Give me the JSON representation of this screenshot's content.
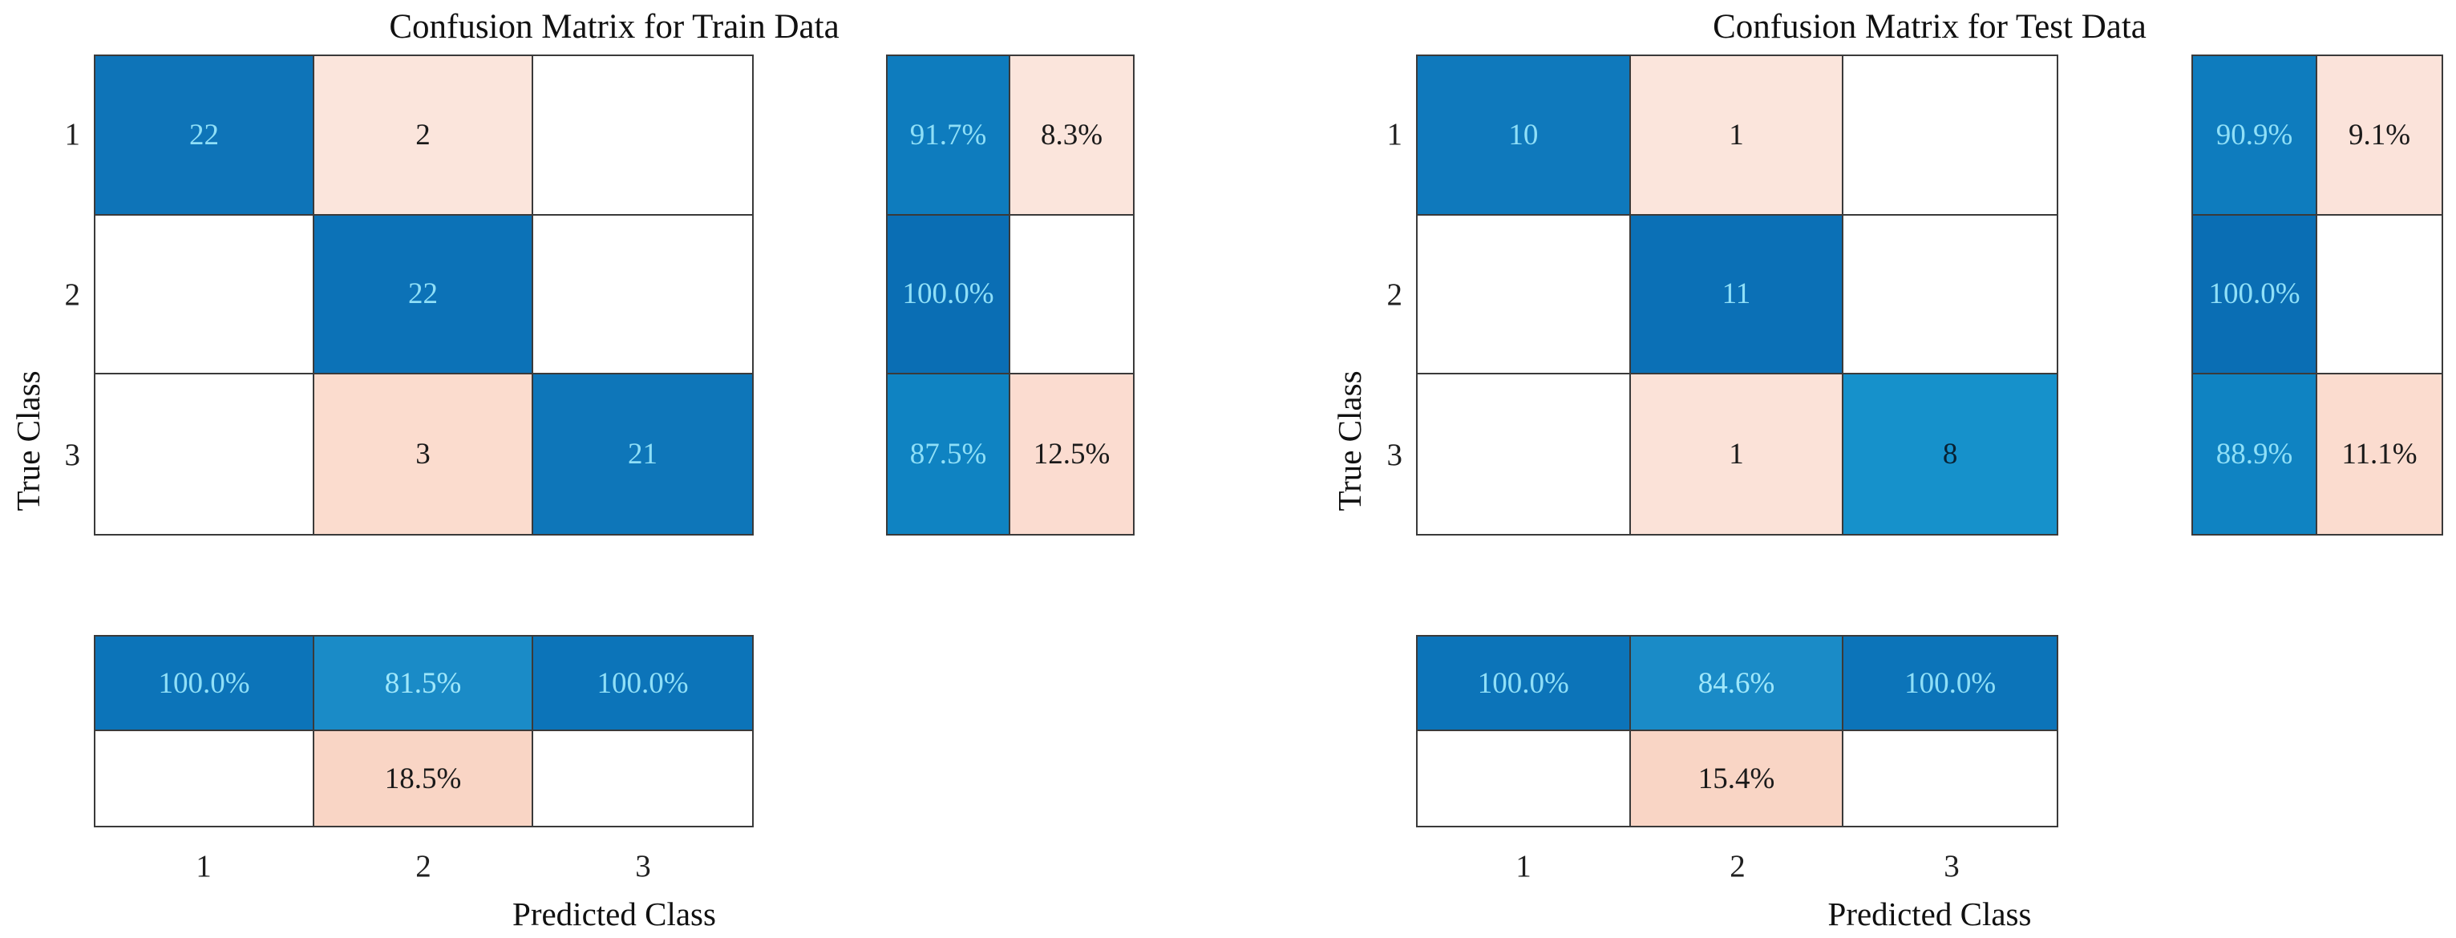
{
  "figure": {
    "type": "confusion-matrix-pair",
    "border_color": "#3a3a3a",
    "text_on_blue": "#8fdff7",
    "text_on_pink": "#1a1a1a"
  },
  "panels": [
    {
      "id": "train",
      "title": "Confusion Matrix for Train Data",
      "x_label": "Predicted Class",
      "y_label": "True Class",
      "class_labels": [
        "1",
        "2",
        "3"
      ],
      "matrix_cells": [
        [
          {
            "v": "22",
            "bg": "#0e74b8",
            "fg": "#8fdff7"
          },
          {
            "v": "2",
            "bg": "#fbe5dc",
            "fg": "#1a1a1a"
          },
          {
            "v": "",
            "bg": "#ffffff",
            "fg": "#1a1a1a"
          }
        ],
        [
          {
            "v": "",
            "bg": "#ffffff",
            "fg": "#1a1a1a"
          },
          {
            "v": "22",
            "bg": "#0c72b7",
            "fg": "#8fdff7"
          },
          {
            "v": "",
            "bg": "#ffffff",
            "fg": "#1a1a1a"
          }
        ],
        [
          {
            "v": "",
            "bg": "#ffffff",
            "fg": "#1a1a1a"
          },
          {
            "v": "3",
            "bg": "#fbdcce",
            "fg": "#1a1a1a"
          },
          {
            "v": "21",
            "bg": "#0e76b9",
            "fg": "#8fdff7"
          }
        ]
      ],
      "row_summary_cells": [
        [
          {
            "v": "91.7%",
            "bg": "#0e7cbe",
            "fg": "#8fdff7"
          },
          {
            "v": "8.3%",
            "bg": "#fbe5dc",
            "fg": "#1a1a1a"
          }
        ],
        [
          {
            "v": "100.0%",
            "bg": "#0a6eb4",
            "fg": "#8fdff7"
          },
          {
            "v": "",
            "bg": "#ffffff",
            "fg": "#1a1a1a"
          }
        ],
        [
          {
            "v": "87.5%",
            "bg": "#0f83c2",
            "fg": "#8fdff7"
          },
          {
            "v": "12.5%",
            "bg": "#fbdcd0",
            "fg": "#1a1a1a"
          }
        ]
      ],
      "col_summary_cells": [
        [
          {
            "v": "100.0%",
            "bg": "#0c74b9",
            "fg": "#8fdff7"
          },
          {
            "v": "81.5%",
            "bg": "#1a8bc7",
            "fg": "#9fe7fa"
          },
          {
            "v": "100.0%",
            "bg": "#0c74b9",
            "fg": "#8fdff7"
          }
        ],
        [
          {
            "v": "",
            "bg": "#ffffff",
            "fg": "#1a1a1a"
          },
          {
            "v": "18.5%",
            "bg": "#f9d5c5",
            "fg": "#1a1a1a"
          },
          {
            "v": "",
            "bg": "#ffffff",
            "fg": "#1a1a1a"
          }
        ]
      ],
      "ytick_positions": [
        144,
        344,
        544
      ],
      "ytick_right_x": 30,
      "xtick_centers": [
        254,
        528,
        802
      ]
    },
    {
      "id": "test",
      "title": "Confusion Matrix for Test Data",
      "x_label": "Predicted Class",
      "y_label": "True Class",
      "class_labels": [
        "1",
        "2",
        "3"
      ],
      "matrix_cells": [
        [
          {
            "v": "10",
            "bg": "#0f79bc",
            "fg": "#8fdff7"
          },
          {
            "v": "1",
            "bg": "#fbe5dc",
            "fg": "#1a1a1a"
          },
          {
            "v": "",
            "bg": "#ffffff",
            "fg": "#1a1a1a"
          }
        ],
        [
          {
            "v": "",
            "bg": "#ffffff",
            "fg": "#1a1a1a"
          },
          {
            "v": "11",
            "bg": "#0b70b6",
            "fg": "#8fdff7"
          },
          {
            "v": "",
            "bg": "#ffffff",
            "fg": "#1a1a1a"
          }
        ],
        [
          {
            "v": "",
            "bg": "#ffffff",
            "fg": "#1a1a1a"
          },
          {
            "v": "1",
            "bg": "#fbe2d8",
            "fg": "#1a1a1a"
          },
          {
            "v": "8",
            "bg": "#1691cb",
            "fg": "#082133"
          }
        ]
      ],
      "row_summary_cells": [
        [
          {
            "v": "90.9%",
            "bg": "#0e7cbe",
            "fg": "#8fdff7"
          },
          {
            "v": "9.1%",
            "bg": "#fbe3da",
            "fg": "#1a1a1a"
          }
        ],
        [
          {
            "v": "100.0%",
            "bg": "#0a6eb4",
            "fg": "#8fdff7"
          },
          {
            "v": "",
            "bg": "#ffffff",
            "fg": "#1a1a1a"
          }
        ],
        [
          {
            "v": "88.9%",
            "bg": "#0f83c2",
            "fg": "#8fdff7"
          },
          {
            "v": "11.1%",
            "bg": "#fbdccf",
            "fg": "#1a1a1a"
          }
        ]
      ],
      "col_summary_cells": [
        [
          {
            "v": "100.0%",
            "bg": "#0c74b9",
            "fg": "#8fdff7"
          },
          {
            "v": "84.6%",
            "bg": "#1a8bc7",
            "fg": "#9fe7fa"
          },
          {
            "v": "100.0%",
            "bg": "#0c74b9",
            "fg": "#8fdff7"
          }
        ],
        [
          {
            "v": "",
            "bg": "#ffffff",
            "fg": "#1a1a1a"
          },
          {
            "v": "15.4%",
            "bg": "#f9d5c5",
            "fg": "#1a1a1a"
          },
          {
            "v": "",
            "bg": "#ffffff",
            "fg": "#1a1a1a"
          }
        ]
      ],
      "ytick_positions": [
        144,
        344,
        544
      ],
      "ytick_right_x": 1679,
      "xtick_centers": [
        1900,
        2167,
        2434
      ]
    }
  ],
  "chart_data": [
    {
      "type": "heatmap",
      "subtype": "confusion-matrix",
      "title": "Confusion Matrix for Train Data",
      "xlabel": "Predicted Class",
      "ylabel": "True Class",
      "classes": [
        "1",
        "2",
        "3"
      ],
      "counts": [
        [
          22,
          2,
          0
        ],
        [
          0,
          22,
          0
        ],
        [
          0,
          3,
          21
        ]
      ],
      "row_summary_correct_pct": [
        91.7,
        100.0,
        87.5
      ],
      "row_summary_incorrect_pct": [
        8.3,
        0,
        12.5
      ],
      "col_summary_correct_pct": [
        100.0,
        81.5,
        100.0
      ],
      "col_summary_incorrect_pct": [
        0,
        18.5,
        0
      ]
    },
    {
      "type": "heatmap",
      "subtype": "confusion-matrix",
      "title": "Confusion Matrix for Test Data",
      "xlabel": "Predicted Class",
      "ylabel": "True Class",
      "classes": [
        "1",
        "2",
        "3"
      ],
      "counts": [
        [
          10,
          1,
          0
        ],
        [
          0,
          11,
          0
        ],
        [
          0,
          1,
          8
        ]
      ],
      "row_summary_correct_pct": [
        90.9,
        100.0,
        88.9
      ],
      "row_summary_incorrect_pct": [
        9.1,
        0,
        11.1
      ],
      "col_summary_correct_pct": [
        100.0,
        84.6,
        100.0
      ],
      "col_summary_incorrect_pct": [
        0,
        15.4,
        0
      ]
    }
  ]
}
